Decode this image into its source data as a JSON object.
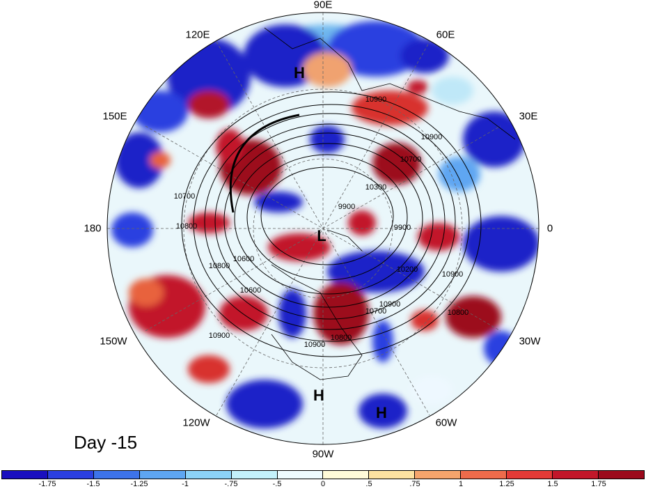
{
  "panel_title": "Day -15",
  "longitude_labels": [
    "90E",
    "60E",
    "30E",
    "0",
    "30W",
    "60W",
    "90W",
    "120W",
    "150W",
    "180",
    "150E",
    "120E"
  ],
  "pressure_markers": [
    {
      "label": "H",
      "lon": 100
    },
    {
      "label": "L",
      "lon": null
    },
    {
      "label": "H",
      "lon": -90
    },
    {
      "label": "H",
      "lon": -75
    }
  ],
  "contour_labels": [
    "10900",
    "10900",
    "10700",
    "10300",
    "9900",
    "10600",
    "10800",
    "10900",
    "10700",
    "10800",
    "10900",
    "10800",
    "10900",
    "10600",
    "10200",
    "10700",
    "10800",
    "10900",
    "9900"
  ],
  "colorbar": {
    "ticks": [
      "-1.75",
      "-1.5",
      "-1.25",
      "-1",
      "-.75",
      "-.5",
      "0",
      ".5",
      ".75",
      "1",
      "1.25",
      "1.5",
      "1.75"
    ],
    "colors": [
      "#1a0fbf",
      "#2b3fe0",
      "#3d73ea",
      "#5ea6f2",
      "#8cd2f7",
      "#c4f1fb",
      "#eefbff",
      "#fffbd9",
      "#fde2a1",
      "#f5a46c",
      "#ee6b4b",
      "#e43a36",
      "#c2172a",
      "#9c0a1c"
    ]
  }
}
